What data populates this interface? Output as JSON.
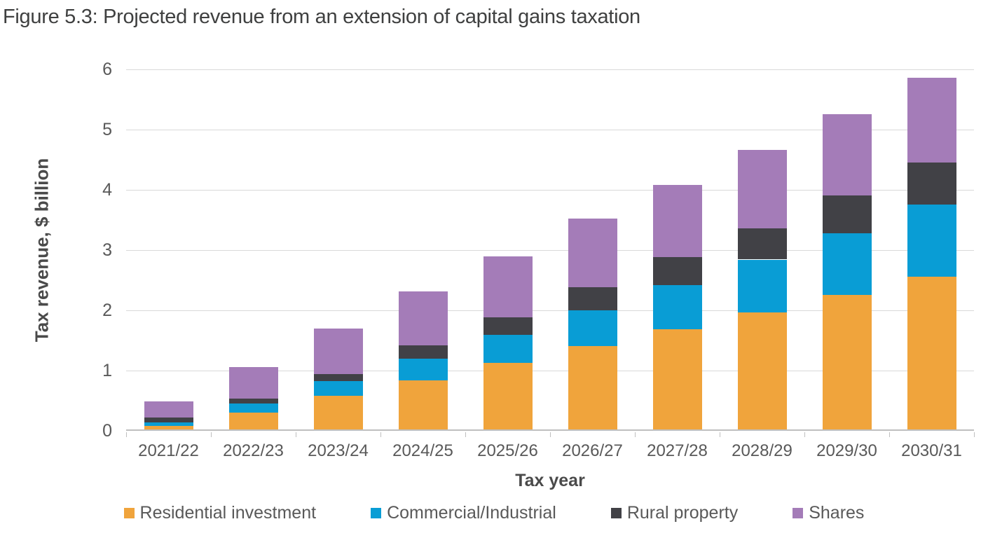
{
  "figure": {
    "title": "Figure 5.3: Projected revenue from an extension of capital gains taxation"
  },
  "chart_data": {
    "type": "bar",
    "stacked": true,
    "title": "Figure 5.3: Projected revenue from an extension of capital gains taxation",
    "categories": [
      "2021/22",
      "2022/23",
      "2023/24",
      "2024/25",
      "2025/26",
      "2026/27",
      "2027/28",
      "2028/29",
      "2029/30",
      "2030/31"
    ],
    "series": [
      {
        "name": "Residential investment",
        "color": "#F0A43C",
        "values": [
          0.06,
          0.28,
          0.56,
          0.81,
          1.1,
          1.38,
          1.66,
          1.94,
          2.23,
          2.53
        ]
      },
      {
        "name": "Commercial/Industrial",
        "color": "#099DD5",
        "values": [
          0.06,
          0.15,
          0.24,
          0.37,
          0.47,
          0.6,
          0.73,
          0.88,
          1.03,
          1.2
        ]
      },
      {
        "name": "Rural property",
        "color": "#414146",
        "values": [
          0.08,
          0.08,
          0.12,
          0.22,
          0.29,
          0.38,
          0.47,
          0.52,
          0.62,
          0.7
        ]
      },
      {
        "name": "Shares",
        "color": "#A47CB8",
        "values": [
          0.27,
          0.53,
          0.75,
          0.89,
          1.01,
          1.14,
          1.2,
          1.3,
          1.35,
          1.41
        ]
      }
    ],
    "stack_totals": [
      0.47,
      1.04,
      1.67,
      2.29,
      2.87,
      3.5,
      4.06,
      4.64,
      5.23,
      5.84
    ],
    "xlabel": "Tax year",
    "ylabel": "Tax revenue, $ billion",
    "ylim": [
      0,
      6
    ],
    "ytick_labels": [
      "0",
      "1",
      "2",
      "3",
      "4",
      "5",
      "6"
    ],
    "grid": true,
    "legend_position": "bottom"
  },
  "style_colors": {
    "title_text": "#3F4040",
    "axis_text": "#595959",
    "gridline": "#D9D9D9",
    "axis_line": "#BFBFBF",
    "background": "#FFFFFF"
  }
}
